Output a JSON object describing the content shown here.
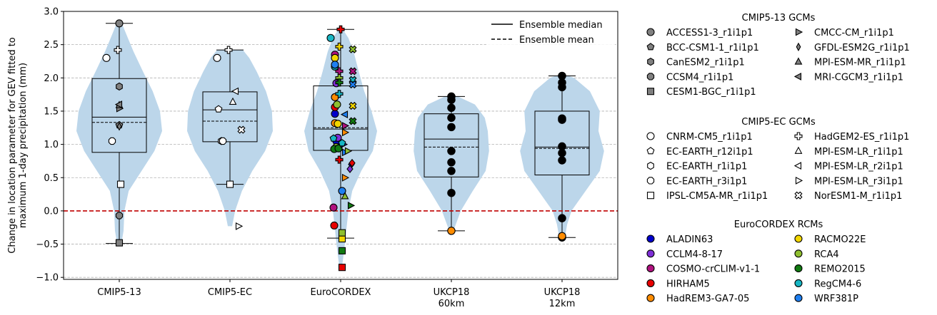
{
  "chart_data": {
    "type": "violin-box-scatter",
    "title": "",
    "xlabel": "",
    "ylabel_lines": [
      "Change in location parameter for GEV fitted to",
      "maximum 1-day precipitation (mm)"
    ],
    "ylim": [
      -1.03,
      3.0
    ],
    "yticks": [
      -1.0,
      -0.5,
      0.0,
      0.5,
      1.0,
      1.5,
      2.0,
      2.5,
      3.0
    ],
    "ytick_labels": [
      "−1.0",
      "−0.5",
      "0.0",
      "0.5",
      "1.0",
      "1.5",
      "2.0",
      "2.5",
      "3.0"
    ],
    "grid": "horizontal dashed",
    "zero_line": {
      "y": 0.0,
      "color": "#c00000",
      "style": "dashed"
    },
    "line_legend": [
      {
        "label": "Ensemble median",
        "style": "solid"
      },
      {
        "label": "Ensemble mean",
        "style": "dashed"
      }
    ],
    "violin_color": "#bcd6ea",
    "groups": [
      {
        "label": [
          "CMIP5-13"
        ],
        "box": {
          "q1": 0.88,
          "median": 1.41,
          "q3": 1.99,
          "whisker_low": -0.49,
          "whisker_high": 2.82,
          "mean": 1.33
        },
        "violin": [
          [
            -0.49,
            0.05
          ],
          [
            -0.3,
            0.1
          ],
          [
            0.0,
            0.12
          ],
          [
            0.3,
            0.22
          ],
          [
            0.6,
            0.52
          ],
          [
            0.9,
            0.82
          ],
          [
            1.2,
            1.0
          ],
          [
            1.5,
            0.95
          ],
          [
            1.8,
            0.78
          ],
          [
            2.1,
            0.55
          ],
          [
            2.4,
            0.33
          ],
          [
            2.6,
            0.2
          ],
          [
            2.82,
            0.06
          ]
        ],
        "points": [
          {
            "m": "ACCESS1-3_r1i1p1",
            "y": 2.82
          },
          {
            "m": "BCC-CSM1-1_r1i1p1",
            "y": 1.29
          },
          {
            "m": "CanESM2_r1i1p1",
            "y": 1.87
          },
          {
            "m": "CCSM4_r1i1p1",
            "y": -0.07
          },
          {
            "m": "CESM1-BGC_r1i1p1",
            "y": -0.48
          },
          {
            "m": "CMCC-CM_r1i1p1",
            "y": 1.54
          },
          {
            "m": "GFDL-ESM2G_r1i1p1",
            "y": 1.27
          },
          {
            "m": "MPI-ESM-MR_r1i1p1",
            "y": 1.59
          },
          {
            "m": "MRI-CGCM3_r1i1p1",
            "y": 1.6
          },
          {
            "m": "CNRM-CM5_r1i1p1",
            "y": 2.3
          },
          {
            "m": "EC-EARTH_r3i1p1",
            "y": 1.05
          },
          {
            "m": "HadGEM2-ES_r1i1p1",
            "y": 2.42
          },
          {
            "m": "IPSL-CM5A-MR_r1i1p1",
            "y": 0.4
          }
        ]
      },
      {
        "label": [
          "CMIP5-EC"
        ],
        "box": {
          "q1": 1.04,
          "median": 1.52,
          "q3": 1.79,
          "whisker_low": 0.4,
          "whisker_high": 2.42,
          "mean": 1.35
        },
        "violin": [
          [
            -0.23,
            0.05
          ],
          [
            0.0,
            0.12
          ],
          [
            0.3,
            0.28
          ],
          [
            0.6,
            0.52
          ],
          [
            0.9,
            0.82
          ],
          [
            1.2,
            1.0
          ],
          [
            1.5,
            0.98
          ],
          [
            1.8,
            0.84
          ],
          [
            2.1,
            0.62
          ],
          [
            2.3,
            0.45
          ],
          [
            2.42,
            0.3
          ]
        ],
        "points": [
          {
            "m": "CNRM-CM5_r1i1p1",
            "y": 2.3
          },
          {
            "m": "EC-EARTH_r12i1p1",
            "y": 1.53
          },
          {
            "m": "EC-EARTH_r1i1p1",
            "y": 1.05
          },
          {
            "m": "EC-EARTH_r3i1p1",
            "y": 1.05
          },
          {
            "m": "IPSL-CM5A-MR_r1i1p1",
            "y": 0.4
          },
          {
            "m": "HadGEM2-ES_r1i1p1",
            "y": 2.42
          },
          {
            "m": "MPI-ESM-LR_r1i1p1",
            "y": 1.64
          },
          {
            "m": "MPI-ESM-LR_r2i1p1",
            "y": 1.8
          },
          {
            "m": "MPI-ESM-LR_r3i1p1",
            "y": -0.23
          },
          {
            "m": "NorESM1-M_r1i1p1",
            "y": 1.22
          }
        ]
      },
      {
        "label": [
          "EuroCORDEX"
        ],
        "box": {
          "q1": 0.91,
          "median": 1.23,
          "q3": 1.88,
          "whisker_low": -0.41,
          "whisker_high": 2.73,
          "mean": 1.25
        },
        "violin": [
          [
            -0.85,
            0.03
          ],
          [
            -0.6,
            0.08
          ],
          [
            -0.3,
            0.13
          ],
          [
            0.0,
            0.18
          ],
          [
            0.3,
            0.27
          ],
          [
            0.6,
            0.48
          ],
          [
            0.9,
            0.75
          ],
          [
            1.2,
            0.85
          ],
          [
            1.5,
            0.72
          ],
          [
            1.8,
            0.55
          ],
          [
            2.1,
            0.42
          ],
          [
            2.4,
            0.3
          ],
          [
            2.6,
            0.18
          ],
          [
            2.73,
            0.05
          ]
        ],
        "points": [
          {
            "m": "ALADIN63",
            "y": 1.46,
            "dx": -8
          },
          {
            "m": "ALADIN63",
            "y": 1.05,
            "dx": -6
          },
          {
            "m": "CCLM4-8-17",
            "y": 1.92,
            "dx": -6
          },
          {
            "m": "CCLM4-8-17",
            "y": 1.1,
            "dx": -4
          },
          {
            "m": "COSMO-crCLIM-v1-1",
            "y": 2.35,
            "dx": -8
          },
          {
            "m": "COSMO-crCLIM-v1-1",
            "y": 0.05,
            "dx": -10
          },
          {
            "m": "HIRHAM5",
            "y": 1.56,
            "dx": -8
          },
          {
            "m": "HIRHAM5",
            "y": -0.22,
            "dx": -9
          },
          {
            "m": "HadREM3-GA7-05",
            "y": 1.71,
            "dx": -8
          },
          {
            "m": "HadREM3-GA7-05",
            "y": 1.32,
            "dx": -8
          },
          {
            "m": "RACMO22E",
            "y": 2.3,
            "dx": -8
          },
          {
            "m": "RACMO22E",
            "y": 1.31,
            "dx": -4
          },
          {
            "m": "RCA4",
            "y": 1.6,
            "dx": -5
          },
          {
            "m": "RCA4",
            "y": 0.96,
            "dx": -6
          },
          {
            "m": "REMO2015",
            "y": 0.93,
            "dx": -9
          },
          {
            "m": "REMO2015",
            "y": 0.94,
            "dx": -3
          },
          {
            "m": "RegCM4-6",
            "y": 2.17,
            "dx": -8
          },
          {
            "m": "RegCM4-6",
            "y": 2.6,
            "dx": -14
          },
          {
            "m": "WRF381P",
            "y": 2.2,
            "dx": -8
          },
          {
            "m": "WRF381P",
            "y": 0.3,
            "dx": 2
          },
          {
            "m": "REMO2015",
            "y": -0.6,
            "dx": 2,
            "shape": "square"
          },
          {
            "m": "HIRHAM5",
            "y": -0.85,
            "dx": 2,
            "shape": "square"
          },
          {
            "m": "RACMO22E",
            "y": -0.42,
            "dx": 2,
            "shape": "square"
          },
          {
            "m": "RCA4",
            "y": -0.33,
            "dx": 2,
            "shape": "square"
          },
          {
            "m": "HIRHAM5",
            "y": 2.73,
            "dx": 0,
            "shape": "plus"
          },
          {
            "m": "RACMO22E",
            "y": 2.47,
            "dx": -2,
            "shape": "plus"
          },
          {
            "m": "COSMO-crCLIM-v1-1",
            "y": 2.1,
            "dx": -2,
            "shape": "plus"
          },
          {
            "m": "RCA4",
            "y": 2.0,
            "dx": -2,
            "shape": "plus"
          },
          {
            "m": "REMO2015",
            "y": 1.93,
            "dx": -2,
            "shape": "plus"
          },
          {
            "m": "RegCM4-6",
            "y": 1.76,
            "dx": -2,
            "shape": "plus"
          },
          {
            "m": "HIRHAM5",
            "y": 0.77,
            "dx": -2,
            "shape": "plus"
          },
          {
            "m": "RCA4",
            "y": 2.43,
            "dx": 17,
            "shape": "cross"
          },
          {
            "m": "COSMO-crCLIM-v1-1",
            "y": 2.1,
            "dx": 17,
            "shape": "cross"
          },
          {
            "m": "RegCM4-6",
            "y": 1.97,
            "dx": 17,
            "shape": "cross"
          },
          {
            "m": "WRF381P",
            "y": 1.9,
            "dx": 17,
            "shape": "cross"
          },
          {
            "m": "RACMO22E",
            "y": 1.58,
            "dx": 17,
            "shape": "cross"
          },
          {
            "m": "REMO2015",
            "y": 1.35,
            "dx": 17,
            "shape": "cross"
          },
          {
            "m": "RCA4",
            "y": 0.22,
            "dx": 6,
            "shape": "tri-up"
          },
          {
            "m": "ALADIN63",
            "y": 1.0,
            "dx": 4,
            "shape": "tri-right"
          },
          {
            "m": "REMO2015",
            "y": 0.08,
            "dx": 14,
            "shape": "tri-right"
          },
          {
            "m": "HadREM3-GA7-05",
            "y": 0.5,
            "dx": 6,
            "shape": "tri-right"
          },
          {
            "m": "WRF381P",
            "y": 0.88,
            "dx": 6,
            "shape": "tri-right"
          },
          {
            "m": "RCA4",
            "y": 0.9,
            "dx": 10,
            "shape": "tri-right"
          },
          {
            "m": "ALADIN63",
            "y": 0.7,
            "dx": 15,
            "shape": "diamond"
          },
          {
            "m": "CCLM4-8-17",
            "y": 0.63,
            "dx": 13,
            "shape": "diamond"
          },
          {
            "m": "HIRHAM5",
            "y": 0.72,
            "dx": 16,
            "shape": "diamond"
          },
          {
            "m": "COSMO-crCLIM-v1-1",
            "y": 1.28,
            "dx": 6,
            "shape": "tri-right"
          },
          {
            "m": "WRF381P",
            "y": 1.45,
            "dx": 6,
            "shape": "tri-left"
          },
          {
            "m": "HadREM3-GA7-05",
            "y": 1.18,
            "dx": 6,
            "shape": "tri-right"
          },
          {
            "m": "RegCM4-6",
            "y": 1.02,
            "dx": 2,
            "shape": "pentagon"
          },
          {
            "m": "RegCM4-6",
            "y": 1.09,
            "dx": -10,
            "shape": "pentagon"
          }
        ]
      },
      {
        "label": [
          "UKCP18",
          "60km"
        ],
        "box": {
          "q1": 0.51,
          "median": 1.08,
          "q3": 1.46,
          "whisker_low": -0.3,
          "whisker_high": 1.72,
          "mean": 0.96
        },
        "violin": [
          [
            -0.28,
            0.06
          ],
          [
            0.0,
            0.22
          ],
          [
            0.3,
            0.5
          ],
          [
            0.6,
            0.8
          ],
          [
            0.9,
            0.88
          ],
          [
            1.2,
            0.85
          ],
          [
            1.4,
            0.78
          ],
          [
            1.6,
            0.55
          ],
          [
            1.72,
            0.15
          ]
        ],
        "points": [
          {
            "m": "UKCP18",
            "y": 1.72
          },
          {
            "m": "UKCP18",
            "y": 1.67
          },
          {
            "m": "UKCP18",
            "y": 1.55
          },
          {
            "m": "UKCP18",
            "y": 1.4
          },
          {
            "m": "UKCP18",
            "y": 1.26
          },
          {
            "m": "UKCP18",
            "y": 0.9
          },
          {
            "m": "UKCP18",
            "y": 0.73
          },
          {
            "m": "UKCP18",
            "y": 0.6
          },
          {
            "m": "UKCP18",
            "y": 0.27
          },
          {
            "m": "HadREM3-GA7-05",
            "y": -0.3
          }
        ]
      },
      {
        "label": [
          "UKCP18",
          "12km"
        ],
        "box": {
          "q1": 0.54,
          "median": 0.96,
          "q3": 1.5,
          "whisker_low": -0.4,
          "whisker_high": 2.03,
          "mean": 0.94
        },
        "violin": [
          [
            -0.42,
            0.06
          ],
          [
            -0.2,
            0.12
          ],
          [
            0.0,
            0.22
          ],
          [
            0.3,
            0.55
          ],
          [
            0.6,
            0.88
          ],
          [
            0.9,
            0.98
          ],
          [
            1.2,
            0.85
          ],
          [
            1.5,
            0.88
          ],
          [
            1.8,
            0.65
          ],
          [
            2.0,
            0.28
          ],
          [
            2.03,
            0.15
          ]
        ],
        "points": [
          {
            "m": "UKCP18",
            "y": 2.03
          },
          {
            "m": "UKCP18",
            "y": 1.93
          },
          {
            "m": "UKCP18",
            "y": 1.86
          },
          {
            "m": "UKCP18",
            "y": 1.39
          },
          {
            "m": "UKCP18",
            "y": 1.37
          },
          {
            "m": "UKCP18",
            "y": 0.97
          },
          {
            "m": "UKCP18",
            "y": 0.87
          },
          {
            "m": "UKCP18",
            "y": 0.76
          },
          {
            "m": "UKCP18",
            "y": -0.11
          },
          {
            "m": "UKCP18",
            "y": -0.4
          },
          {
            "m": "HadREM3-GA7-05",
            "y": -0.38
          }
        ]
      }
    ],
    "legends": [
      {
        "title": "CMIP5-13 GCMs",
        "color": "#808080",
        "entries": [
          {
            "label": "ACCESS1-3_r1i1p1",
            "shape": "circle"
          },
          {
            "label": "CMCC-CM_r1i1p1",
            "shape": "tri-right"
          },
          {
            "label": "BCC-CSM1-1_r1i1p1",
            "shape": "pentagon"
          },
          {
            "label": "GFDL-ESM2G_r1i1p1",
            "shape": "thin-diamond"
          },
          {
            "label": "CanESM2_r1i1p1",
            "shape": "hexagon"
          },
          {
            "label": "MPI-ESM-MR_r1i1p1",
            "shape": "tri-up"
          },
          {
            "label": "CCSM4_r1i1p1",
            "shape": "octagon"
          },
          {
            "label": "MRI-CGCM3_r1i1p1",
            "shape": "tri-left"
          },
          {
            "label": "CESM1-BGC_r1i1p1",
            "shape": "square"
          }
        ]
      },
      {
        "title": "CMIP5-EC GCMs",
        "color": "#ffffff",
        "entries": [
          {
            "label": "CNRM-CM5_r1i1p1",
            "shape": "circle"
          },
          {
            "label": "HadGEM2-ES_r1i1p1",
            "shape": "plus"
          },
          {
            "label": "EC-EARTH_r12i1p1",
            "shape": "pentagon"
          },
          {
            "label": "MPI-ESM-LR_r1i1p1",
            "shape": "tri-up"
          },
          {
            "label": "EC-EARTH_r1i1p1",
            "shape": "hexagon"
          },
          {
            "label": "MPI-ESM-LR_r2i1p1",
            "shape": "tri-left"
          },
          {
            "label": "EC-EARTH_r3i1p1",
            "shape": "octagon"
          },
          {
            "label": "MPI-ESM-LR_r3i1p1",
            "shape": "tri-right"
          },
          {
            "label": "IPSL-CM5A-MR_r1i1p1",
            "shape": "square"
          },
          {
            "label": "NorESM1-M_r1i1p1",
            "shape": "cross"
          }
        ]
      },
      {
        "title": "EuroCORDEX RCMs",
        "entries": [
          {
            "label": "ALADIN63",
            "shape": "circle",
            "color": "#0000cc"
          },
          {
            "label": "RACMO22E",
            "shape": "circle",
            "color": "#f2d600"
          },
          {
            "label": "CCLM4-8-17",
            "shape": "circle",
            "color": "#7f2fd6"
          },
          {
            "label": "RCA4",
            "shape": "circle",
            "color": "#8fbf2f"
          },
          {
            "label": "COSMO-crCLIM-v1-1",
            "shape": "circle",
            "color": "#b0127f"
          },
          {
            "label": "REMO2015",
            "shape": "circle",
            "color": "#117a11"
          },
          {
            "label": "HIRHAM5",
            "shape": "circle",
            "color": "#e80000"
          },
          {
            "label": "RegCM4-6",
            "shape": "circle",
            "color": "#17b6c4"
          },
          {
            "label": "HadREM3-GA7-05",
            "shape": "circle",
            "color": "#ff8c00"
          },
          {
            "label": "WRF381P",
            "shape": "circle",
            "color": "#1f7ff0"
          }
        ]
      }
    ]
  }
}
